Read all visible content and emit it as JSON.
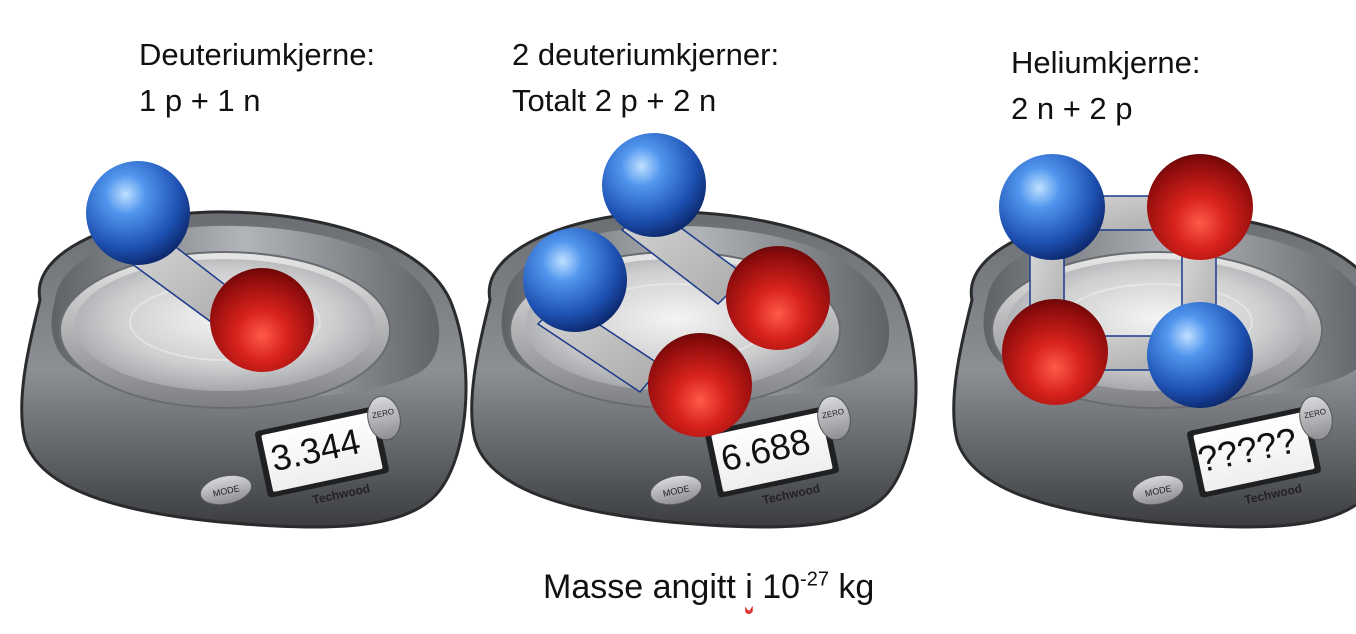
{
  "panels": [
    {
      "title": "Deuteriumkjerne:",
      "subtitle": "1 p + 1 n",
      "display": "3.344"
    },
    {
      "title": "2 deuteriumkjerner:",
      "subtitle": "Totalt 2 p + 2 n",
      "display": "6.688"
    },
    {
      "title": "Heliumkjerne:",
      "subtitle": "2 n + 2 p",
      "display": "?????"
    }
  ],
  "scale": {
    "brand": "Techwood",
    "mode_label": "MODE",
    "zero_label": "ZERO"
  },
  "note": {
    "prefix": "Masse angitt ",
    "word": "i",
    "base": " 10",
    "exponent": "-27",
    "unit": " kg"
  },
  "colors": {
    "proton": "#d0201c",
    "neutron": "#2f6fd6",
    "bond": "#bdbdbd"
  }
}
